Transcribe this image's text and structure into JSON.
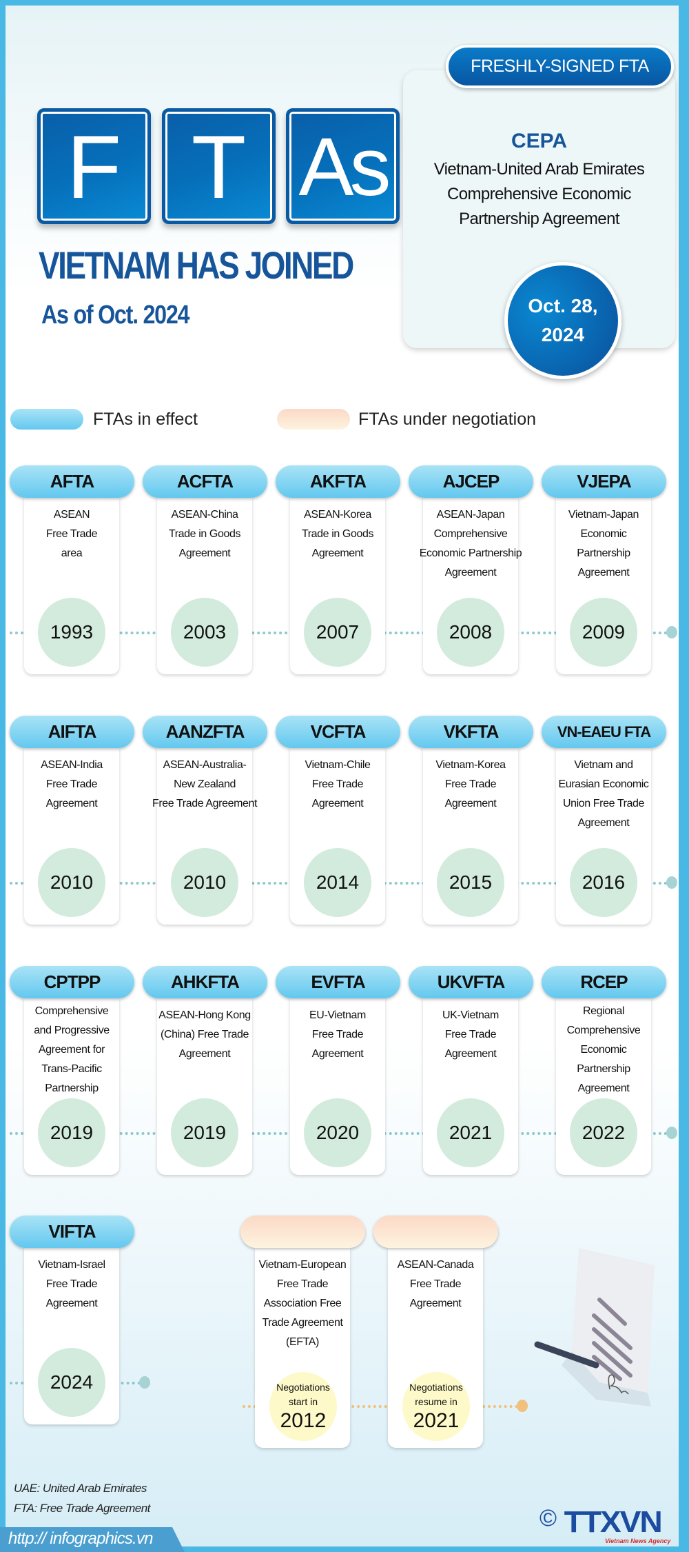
{
  "header": {
    "letters": [
      "F",
      "T",
      "As"
    ],
    "title": "VIETNAM HAS JOINED",
    "subtitle": "As of Oct. 2024"
  },
  "featured": {
    "badge": "FRESHLY-SIGNED FTA",
    "name": "CEPA",
    "description": "Vietnam-United Arab Emirates\nComprehensive Economic\nPartnership Agreement",
    "date": "Oct. 28,\n2024"
  },
  "legend": {
    "in_effect": "FTAs in effect",
    "under_negotiation": "FTAs under negotiation"
  },
  "colors": {
    "in_effect": "#63c8ef",
    "under_negotiation": "#fbd9c6",
    "year_circle": "#d2ebdd",
    "negotiation_circle": "#fdf9c9",
    "title": "#17559a"
  },
  "in_effect": [
    {
      "code": "AFTA",
      "desc": "ASEAN\nFree Trade\narea",
      "year": "1993"
    },
    {
      "code": "ACFTA",
      "desc": "ASEAN-China\nTrade in Goods\nAgreement",
      "year": "2003"
    },
    {
      "code": "AKFTA",
      "desc": "ASEAN-Korea\nTrade in Goods\nAgreement",
      "year": "2007"
    },
    {
      "code": "AJCEP",
      "desc": "ASEAN-Japan\nComprehensive\nEconomic Partnership\nAgreement",
      "year": "2008"
    },
    {
      "code": "VJEPA",
      "desc": "Vietnam-Japan\nEconomic\nPartnership\nAgreement",
      "year": "2009"
    },
    {
      "code": "AIFTA",
      "desc": "ASEAN-India\nFree Trade\nAgreement",
      "year": "2010"
    },
    {
      "code": "AANZFTA",
      "desc": "ASEAN-Australia-\nNew Zealand\nFree Trade Agreement",
      "year": "2010"
    },
    {
      "code": "VCFTA",
      "desc": "Vietnam-Chile\nFree Trade\nAgreement",
      "year": "2014"
    },
    {
      "code": "VKFTA",
      "desc": "Vietnam-Korea\nFree Trade\nAgreement",
      "year": "2015"
    },
    {
      "code": "VN-EAEU FTA",
      "desc": "Vietnam and\nEurasian Economic\nUnion Free Trade\nAgreement",
      "year": "2016"
    },
    {
      "code": "CPTPP",
      "desc": "Comprehensive\nand Progressive\nAgreement for\nTrans-Pacific\nPartnership",
      "year": "2019"
    },
    {
      "code": "AHKFTA",
      "desc": "ASEAN-Hong Kong\n(China) Free Trade\nAgreement",
      "year": "2019"
    },
    {
      "code": "EVFTA",
      "desc": "EU-Vietnam\nFree Trade\nAgreement",
      "year": "2020"
    },
    {
      "code": "UKVFTA",
      "desc": "UK-Vietnam\nFree Trade\nAgreement",
      "year": "2021"
    },
    {
      "code": "RCEP",
      "desc": "Regional\nComprehensive\nEconomic\nPartnership\nAgreement",
      "year": "2022"
    },
    {
      "code": "VIFTA",
      "desc": "Vietnam-Israel\nFree Trade\nAgreement",
      "year": "2024"
    }
  ],
  "under_negotiation": [
    {
      "desc": "Vietnam-European\nFree Trade\nAssociation Free\nTrade Agreement\n(EFTA)",
      "status": "Negotiations\nstart in",
      "year": "2012"
    },
    {
      "desc": "ASEAN-Canada\nFree Trade\nAgreement",
      "status": "Negotiations\nresume in",
      "year": "2021"
    }
  ],
  "footnotes": [
    "UAE: United Arab Emirates",
    "FTA: Free Trade Agreement"
  ],
  "footer": {
    "url": "http:// infographics.vn",
    "copyright": "©",
    "logo": "TTXVN",
    "agency": "Vietnam News Agency"
  }
}
